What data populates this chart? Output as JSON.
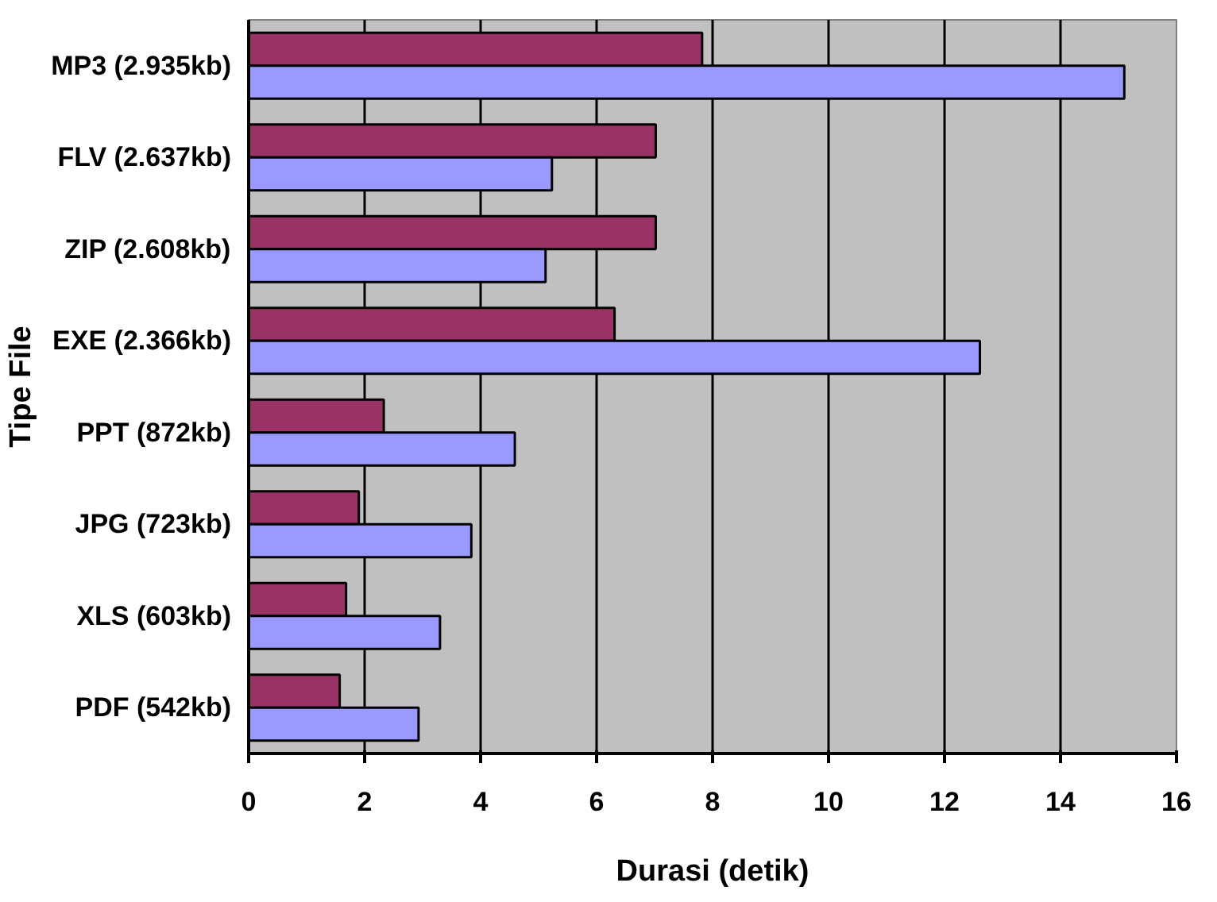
{
  "chart_data": {
    "type": "bar",
    "orientation": "horizontal",
    "xlabel": "Durasi (detik)",
    "ylabel": "Tipe File",
    "categories": [
      "MP3 (2.935kb)",
      "FLV (2.637kb)",
      "ZIP (2.608kb)",
      "EXE (2.366kb)",
      "PPT (872kb)",
      "JPG (723kb)",
      "XLS (603kb)",
      "PDF (542kb)"
    ],
    "series": [
      {
        "color": "#993366",
        "values": [
          7.82,
          7.02,
          7.02,
          6.31,
          2.33,
          1.9,
          1.68,
          1.57
        ]
      },
      {
        "color": "#9999ff",
        "values": [
          15.1,
          5.23,
          5.12,
          12.61,
          4.59,
          3.84,
          3.3,
          2.93
        ]
      }
    ],
    "xlim": [
      0,
      16
    ],
    "xticks": [
      0,
      2,
      4,
      6,
      8,
      10,
      12,
      14,
      16
    ],
    "grid": "x"
  }
}
